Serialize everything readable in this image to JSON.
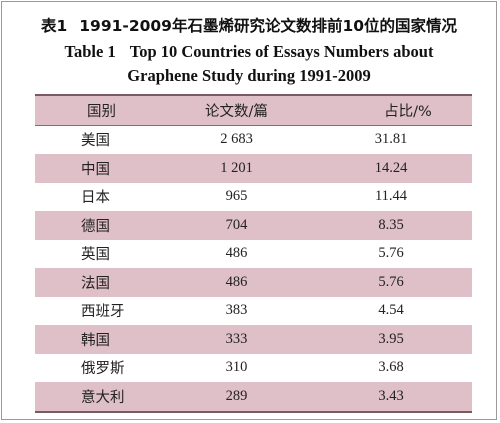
{
  "caption": {
    "cn_number": "表1",
    "cn_title": "1991-2009年石墨烯研究论文数排前10位的国家情况",
    "en_number": "Table 1",
    "en_title_line1": "Top 10 Countries of Essays Numbers about",
    "en_title_line2": "Graphene Study during 1991-2009"
  },
  "table": {
    "headers": [
      "国别",
      "论文数/篇",
      "占比/%"
    ],
    "rows": [
      {
        "country": "美国",
        "count": "2 683",
        "share": "31.81"
      },
      {
        "country": "中国",
        "count": "1 201",
        "share": "14.24"
      },
      {
        "country": "日本",
        "count": "965",
        "share": "11.44"
      },
      {
        "country": "德国",
        "count": "704",
        "share": "8.35"
      },
      {
        "country": "英国",
        "count": "486",
        "share": "5.76"
      },
      {
        "country": "法国",
        "count": "486",
        "share": "5.76"
      },
      {
        "country": "西班牙",
        "count": "383",
        "share": "4.54"
      },
      {
        "country": "韩国",
        "count": "333",
        "share": "3.95"
      },
      {
        "country": "俄罗斯",
        "count": "310",
        "share": "3.68"
      },
      {
        "country": "意大利",
        "count": "289",
        "share": "3.43"
      }
    ]
  },
  "colors": {
    "row_shade": "#dfbfc8",
    "rule": "#7a5a62"
  }
}
